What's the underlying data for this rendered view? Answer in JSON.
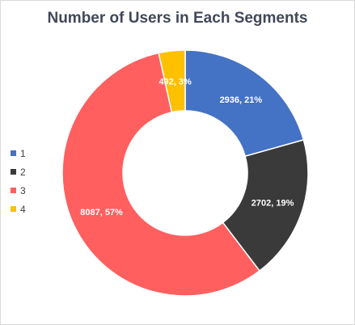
{
  "chart_data": {
    "type": "pie",
    "subtype": "donut",
    "title": "Number of Users in Each Segments",
    "legend_position": "left",
    "categories": [
      "1",
      "2",
      "3",
      "4"
    ],
    "values": [
      2936,
      2702,
      8087,
      492
    ],
    "data_labels": [
      "2936, 21%",
      "2702, 19%",
      "8087, 57%",
      "492, 3%"
    ],
    "colors": [
      "#4472C4",
      "#3A3A3A",
      "#FF5F5F",
      "#FFC000"
    ]
  }
}
